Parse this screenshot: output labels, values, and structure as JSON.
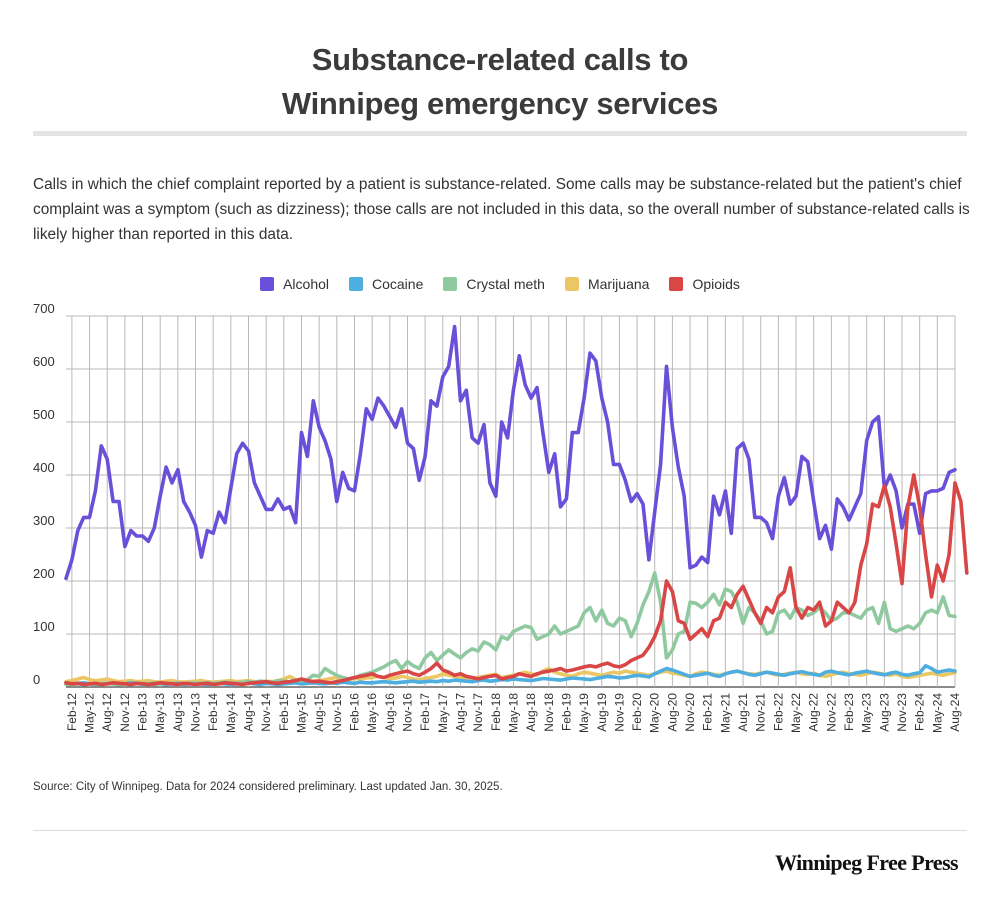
{
  "title_line1": "Substance-related calls to",
  "title_line2": "Winnipeg emergency services",
  "subtitle": "Calls in which the chief complaint reported by a patient is substance-related. Some calls may be substance-related but the patient's chief complaint was a symptom (such as dizziness); those calls are not included in this data, so the overall number of substance-related calls is likely higher than reported in this data.",
  "source": "Source: City of Winnipeg. Data for 2024 considered preliminary. Last updated Jan. 30, 2025.",
  "logo": "Winnipeg Free Press",
  "chart_data": {
    "type": "line",
    "start": "Jan-12",
    "ylim": [
      0,
      700
    ],
    "yticks": [
      0,
      100,
      200,
      300,
      400,
      500,
      600,
      700
    ],
    "xticks": [
      "Feb-12",
      "May-12",
      "Aug-12",
      "Nov-12",
      "Feb-13",
      "May-13",
      "Aug-13",
      "Nov-13",
      "Feb-14",
      "May-14",
      "Aug-14",
      "Nov-14",
      "Feb-15",
      "May-15",
      "Aug-15",
      "Nov-15",
      "Feb-16",
      "May-16",
      "Aug-16",
      "Nov-16",
      "Feb-17",
      "May-17",
      "Aug-17",
      "Nov-17",
      "Feb-18",
      "May-18",
      "Aug-18",
      "Nov-18",
      "Feb-19",
      "May-19",
      "Aug-19",
      "Nov-19",
      "Feb-20",
      "May-20",
      "Aug-20",
      "Nov-20",
      "Feb-21",
      "May-21",
      "Aug-21",
      "Nov-21",
      "Feb-22",
      "May-22",
      "Aug-22",
      "Nov-22",
      "Feb-23",
      "May-23",
      "Aug-23",
      "Nov-23",
      "Feb-24",
      "May-24",
      "Aug-24"
    ],
    "grid": true,
    "legend": "top-center",
    "series": [
      {
        "name": "Alcohol",
        "color": "#6a4fd8",
        "values": [
          205,
          240,
          295,
          320,
          320,
          370,
          455,
          430,
          350,
          350,
          265,
          295,
          285,
          285,
          275,
          300,
          360,
          415,
          385,
          410,
          350,
          330,
          305,
          245,
          295,
          290,
          330,
          310,
          375,
          440,
          460,
          445,
          385,
          360,
          335,
          335,
          355,
          335,
          340,
          310,
          480,
          435,
          540,
          490,
          465,
          430,
          350,
          405,
          375,
          370,
          440,
          525,
          505,
          545,
          530,
          510,
          490,
          525,
          460,
          450,
          390,
          435,
          540,
          530,
          585,
          605,
          680,
          540,
          560,
          470,
          460,
          495,
          385,
          360,
          500,
          470,
          560,
          625,
          570,
          545,
          565,
          480,
          405,
          440,
          340,
          355,
          480,
          480,
          545,
          630,
          615,
          545,
          500,
          420,
          420,
          390,
          350,
          365,
          345,
          240,
          330,
          420,
          605,
          490,
          415,
          360,
          225,
          230,
          245,
          235,
          360,
          325,
          370,
          290,
          450,
          460,
          430,
          320,
          320,
          310,
          280,
          360,
          395,
          345,
          360,
          435,
          425,
          350,
          280,
          305,
          260,
          355,
          340,
          315,
          340,
          365,
          465,
          500,
          510,
          375,
          400,
          370,
          300,
          345,
          345,
          290,
          365,
          370,
          370,
          375,
          405,
          410
        ]
      },
      {
        "name": "Cocaine",
        "color": "#4eaee0",
        "values": [
          6,
          5,
          7,
          8,
          6,
          5,
          6,
          7,
          6,
          5,
          6,
          8,
          7,
          5,
          6,
          7,
          6,
          5,
          6,
          7,
          5,
          6,
          7,
          6,
          5,
          6,
          7,
          6,
          5,
          6,
          7,
          8,
          6,
          5,
          7,
          6,
          5,
          6,
          7,
          8,
          6,
          7,
          8,
          7,
          6,
          8,
          7,
          9,
          8,
          7,
          9,
          8,
          8,
          9,
          10,
          9,
          8,
          9,
          10,
          11,
          9,
          10,
          11,
          10,
          12,
          11,
          13,
          12,
          11,
          10,
          12,
          13,
          11,
          12,
          14,
          13,
          15,
          14,
          13,
          12,
          14,
          16,
          15,
          14,
          13,
          15,
          17,
          16,
          15,
          14,
          16,
          18,
          20,
          19,
          17,
          18,
          20,
          22,
          21,
          19,
          25,
          30,
          35,
          32,
          28,
          24,
          20,
          22,
          24,
          26,
          22,
          20,
          25,
          28,
          30,
          27,
          24,
          22,
          25,
          28,
          26,
          24,
          22,
          25,
          27,
          29,
          26,
          24,
          22,
          28,
          30,
          27,
          25,
          23,
          26,
          28,
          30,
          27,
          25,
          23,
          26,
          28,
          24,
          22,
          25,
          27,
          40,
          35,
          28,
          30,
          32,
          30
        ]
      },
      {
        "name": "Crystal meth",
        "color": "#8fc9a0",
        "values": [
          5,
          5,
          6,
          5,
          6,
          5,
          6,
          7,
          6,
          5,
          6,
          5,
          6,
          7,
          6,
          5,
          6,
          7,
          6,
          5,
          6,
          7,
          8,
          7,
          8,
          7,
          8,
          9,
          8,
          7,
          9,
          10,
          9,
          11,
          10,
          9,
          12,
          11,
          10,
          13,
          12,
          14,
          22,
          20,
          35,
          28,
          22,
          18,
          15,
          17,
          22,
          25,
          28,
          33,
          38,
          45,
          50,
          35,
          48,
          40,
          35,
          55,
          65,
          50,
          60,
          70,
          62,
          55,
          65,
          72,
          68,
          85,
          80,
          70,
          95,
          90,
          105,
          110,
          115,
          112,
          90,
          95,
          100,
          115,
          100,
          105,
          110,
          115,
          140,
          150,
          125,
          145,
          120,
          115,
          130,
          125,
          95,
          120,
          155,
          180,
          215,
          160,
          55,
          70,
          100,
          105,
          160,
          158,
          150,
          160,
          175,
          155,
          185,
          180,
          160,
          120,
          150,
          140,
          125,
          100,
          105,
          140,
          145,
          130,
          150,
          145,
          135,
          140,
          150,
          140,
          125,
          130,
          140,
          140,
          135,
          130,
          145,
          150,
          120,
          160,
          110,
          105,
          110,
          115,
          110,
          120,
          140,
          145,
          140,
          170,
          135,
          133
        ]
      },
      {
        "name": "Marijuana",
        "color": "#eac764",
        "values": [
          10,
          12,
          15,
          18,
          14,
          12,
          13,
          15,
          12,
          10,
          11,
          12,
          10,
          11,
          12,
          10,
          9,
          11,
          12,
          10,
          9,
          10,
          11,
          12,
          10,
          9,
          10,
          11,
          12,
          10,
          11,
          12,
          10,
          9,
          11,
          10,
          12,
          15,
          20,
          14,
          12,
          10,
          11,
          12,
          14,
          16,
          18,
          12,
          14,
          16,
          15,
          17,
          18,
          20,
          18,
          16,
          17,
          20,
          18,
          15,
          14,
          16,
          18,
          20,
          25,
          22,
          20,
          18,
          17,
          16,
          18,
          20,
          22,
          24,
          18,
          20,
          22,
          25,
          28,
          25,
          22,
          30,
          35,
          28,
          25,
          22,
          20,
          25,
          28,
          26,
          24,
          22,
          25,
          28,
          26,
          30,
          28,
          26,
          24,
          22,
          25,
          28,
          30,
          26,
          25,
          22,
          20,
          25,
          28,
          26,
          24,
          22,
          25,
          28,
          30,
          27,
          25,
          24,
          26,
          28,
          25,
          22,
          24,
          26,
          28,
          25,
          24,
          26,
          22,
          20,
          23,
          26,
          28,
          25,
          24,
          22,
          25,
          28,
          26,
          24,
          22,
          25,
          20,
          18,
          20,
          22,
          24,
          26,
          24,
          22,
          25,
          27
        ]
      },
      {
        "name": "Opioids",
        "color": "#d84646",
        "values": [
          8,
          6,
          7,
          5,
          6,
          7,
          5,
          6,
          8,
          7,
          6,
          5,
          7,
          6,
          5,
          6,
          8,
          7,
          6,
          5,
          7,
          6,
          5,
          6,
          7,
          5,
          6,
          8,
          7,
          6,
          5,
          7,
          8,
          9,
          10,
          8,
          7,
          9,
          10,
          12,
          15,
          12,
          10,
          11,
          9,
          8,
          10,
          12,
          15,
          18,
          20,
          22,
          25,
          20,
          18,
          22,
          25,
          28,
          30,
          25,
          22,
          28,
          35,
          45,
          32,
          28,
          22,
          25,
          20,
          18,
          15,
          18,
          20,
          22,
          15,
          18,
          20,
          25,
          22,
          20,
          25,
          28,
          30,
          32,
          35,
          30,
          32,
          35,
          38,
          40,
          38,
          42,
          45,
          40,
          38,
          42,
          50,
          55,
          60,
          75,
          95,
          125,
          200,
          180,
          125,
          120,
          90,
          100,
          110,
          95,
          125,
          130,
          160,
          150,
          175,
          190,
          165,
          140,
          120,
          150,
          140,
          170,
          180,
          225,
          150,
          130,
          150,
          145,
          160,
          115,
          125,
          160,
          150,
          140,
          160,
          230,
          270,
          345,
          340,
          380,
          340,
          270,
          195,
          340,
          400,
          340,
          250,
          170,
          230,
          200,
          250,
          385,
          350,
          215
        ]
      }
    ]
  }
}
